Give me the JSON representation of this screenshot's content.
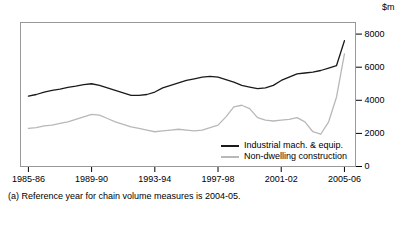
{
  "chart_data": {
    "type": "line",
    "footnote": "(a) Reference year for chain volume measures is 2004-05.",
    "y_label": "$m",
    "x": [
      1985.5,
      1986.0,
      1986.5,
      1987.0,
      1987.5,
      1988.0,
      1988.5,
      1989.0,
      1989.5,
      1990.0,
      1990.5,
      1991.0,
      1991.5,
      1992.0,
      1992.5,
      1993.0,
      1993.5,
      1994.0,
      1994.5,
      1995.0,
      1995.5,
      1996.0,
      1996.5,
      1997.0,
      1997.5,
      1998.0,
      1998.5,
      1999.0,
      1999.5,
      2000.0,
      2000.5,
      2001.0,
      2001.5,
      2002.0,
      2002.5,
      2003.0,
      2003.5,
      2004.0,
      2004.5,
      2005.0,
      2005.5
    ],
    "series": [
      {
        "name": "Industrial mach. & equip.",
        "color": "#1a1a1a",
        "values": [
          4250,
          4350,
          4500,
          4600,
          4680,
          4780,
          4850,
          4950,
          5000,
          4900,
          4750,
          4600,
          4450,
          4300,
          4300,
          4350,
          4500,
          4750,
          4900,
          5050,
          5200,
          5300,
          5400,
          5450,
          5400,
          5250,
          5100,
          4900,
          4800,
          4700,
          4750,
          4900,
          5200,
          5400,
          5600,
          5650,
          5700,
          5800,
          5950,
          6100,
          7600
        ]
      },
      {
        "name": "Non-dwelling construction",
        "color": "#b8b8b8",
        "values": [
          2300,
          2350,
          2450,
          2500,
          2600,
          2700,
          2850,
          3000,
          3150,
          3100,
          2900,
          2700,
          2550,
          2400,
          2300,
          2200,
          2100,
          2150,
          2200,
          2250,
          2200,
          2150,
          2200,
          2350,
          2500,
          3000,
          3600,
          3700,
          3500,
          2950,
          2800,
          2750,
          2800,
          2850,
          2950,
          2700,
          2100,
          1950,
          2700,
          4200,
          6800
        ]
      }
    ],
    "xlim": [
      1985.0,
      2006.2
    ],
    "xticks": [
      {
        "value": 1985.5,
        "label": "1985-86"
      },
      {
        "value": 1989.5,
        "label": "1989-90"
      },
      {
        "value": 1993.5,
        "label": "1993-94"
      },
      {
        "value": 1997.5,
        "label": "1997-98"
      },
      {
        "value": 2001.5,
        "label": "2001-02"
      },
      {
        "value": 2005.5,
        "label": "2005-06"
      }
    ],
    "ylim": [
      0,
      8700
    ],
    "yticks": [
      0,
      2000,
      4000,
      6000,
      8000
    ],
    "legend": "lower right"
  }
}
